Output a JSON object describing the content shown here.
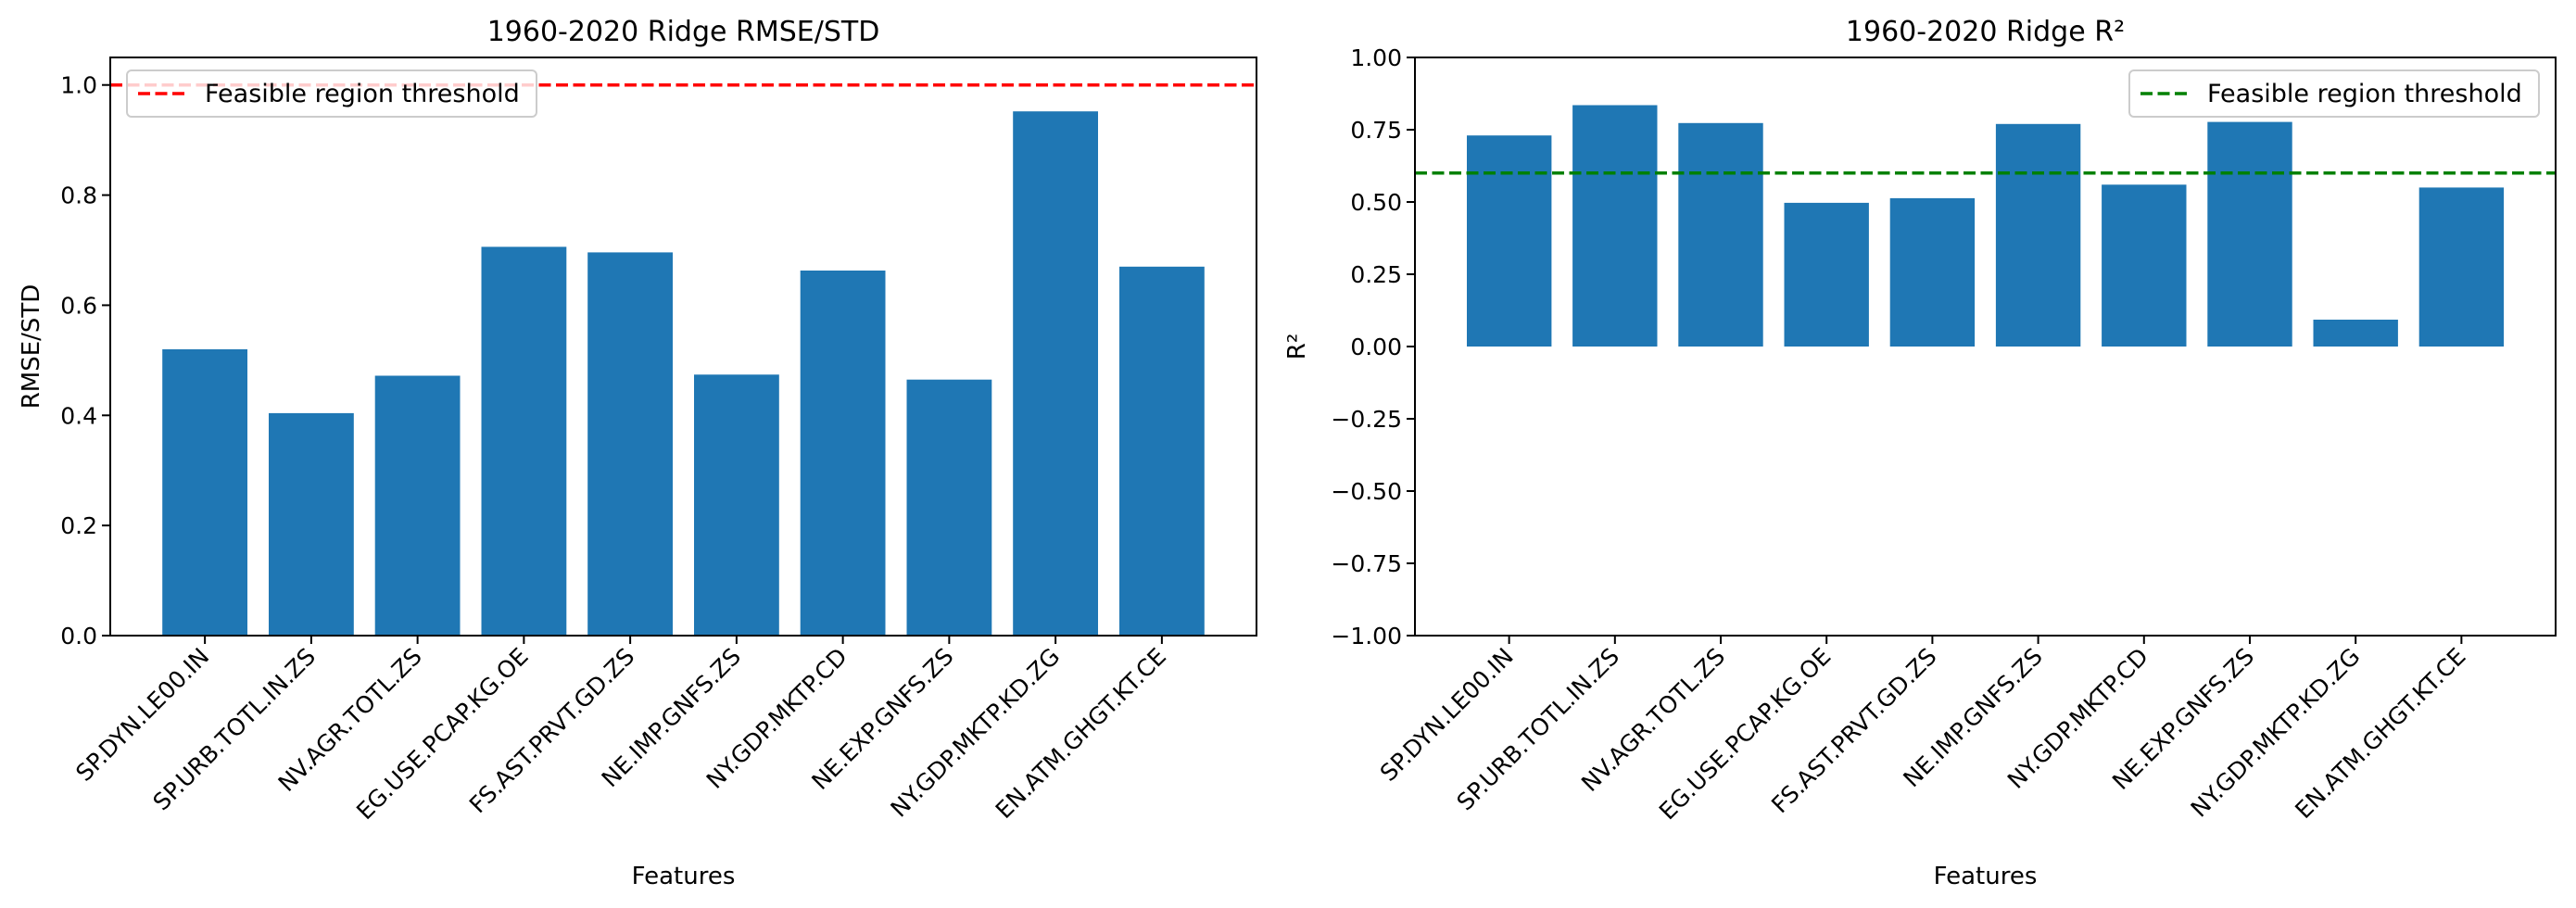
{
  "chart_data": [
    {
      "type": "bar",
      "title": "1960-2020 Ridge  RMSE/STD",
      "xlabel": "Features",
      "ylabel": "RMSE/STD",
      "categories": [
        "SP.DYN.LE00.IN",
        "SP.URB.TOTL.IN.ZS",
        "NV.AGR.TOTL.ZS",
        "EG.USE.PCAP.KG.OE",
        "FS.AST.PRVT.GD.ZS",
        "NE.IMP.GNFS.ZS",
        "NY.GDP.MKTP.CD",
        "NE.EXP.GNFS.ZS",
        "NY.GDP.MKTP.KD.ZG",
        "EN.ATM.GHGT.KT.CE"
      ],
      "values": [
        0.52,
        0.404,
        0.472,
        0.706,
        0.696,
        0.474,
        0.663,
        0.465,
        0.952,
        0.67
      ],
      "ylim": [
        0.0,
        1.05
      ],
      "yticks": [
        0.0,
        0.2,
        0.4,
        0.6,
        0.8,
        1.0
      ],
      "ytick_labels": [
        "0.0",
        "0.2",
        "0.4",
        "0.6",
        "0.8",
        "1.0"
      ],
      "bar_color": "#1f77b4",
      "threshold": {
        "value": 1.0,
        "color": "#ff0000",
        "style": "dashed",
        "label": "Feasible region threshold"
      },
      "legend_position": "top-left",
      "grid": false
    },
    {
      "type": "bar",
      "title": "1960-2020 Ridge  R²",
      "xlabel": "Features",
      "ylabel": "R²",
      "categories": [
        "SP.DYN.LE00.IN",
        "SP.URB.TOTL.IN.ZS",
        "NV.AGR.TOTL.ZS",
        "EG.USE.PCAP.KG.OE",
        "FS.AST.PRVT.GD.ZS",
        "NE.IMP.GNFS.ZS",
        "NY.GDP.MKTP.CD",
        "NE.EXP.GNFS.ZS",
        "NY.GDP.MKTP.KD.ZG",
        "EN.ATM.GHGT.KT.CE"
      ],
      "values": [
        0.73,
        0.835,
        0.773,
        0.497,
        0.513,
        0.77,
        0.56,
        0.777,
        0.093,
        0.55
      ],
      "ylim": [
        -1.0,
        1.0
      ],
      "yticks": [
        -1.0,
        -0.75,
        -0.5,
        -0.25,
        0.0,
        0.25,
        0.5,
        0.75,
        1.0
      ],
      "ytick_labels": [
        "−1.00",
        "−0.75",
        "−0.50",
        "−0.25",
        "0.00",
        "0.25",
        "0.50",
        "0.75",
        "1.00"
      ],
      "bar_color": "#1f77b4",
      "threshold": {
        "value": 0.6,
        "color": "#008000",
        "style": "dashed",
        "label": "Feasible region threshold"
      },
      "legend_position": "top-right",
      "grid": false
    }
  ]
}
